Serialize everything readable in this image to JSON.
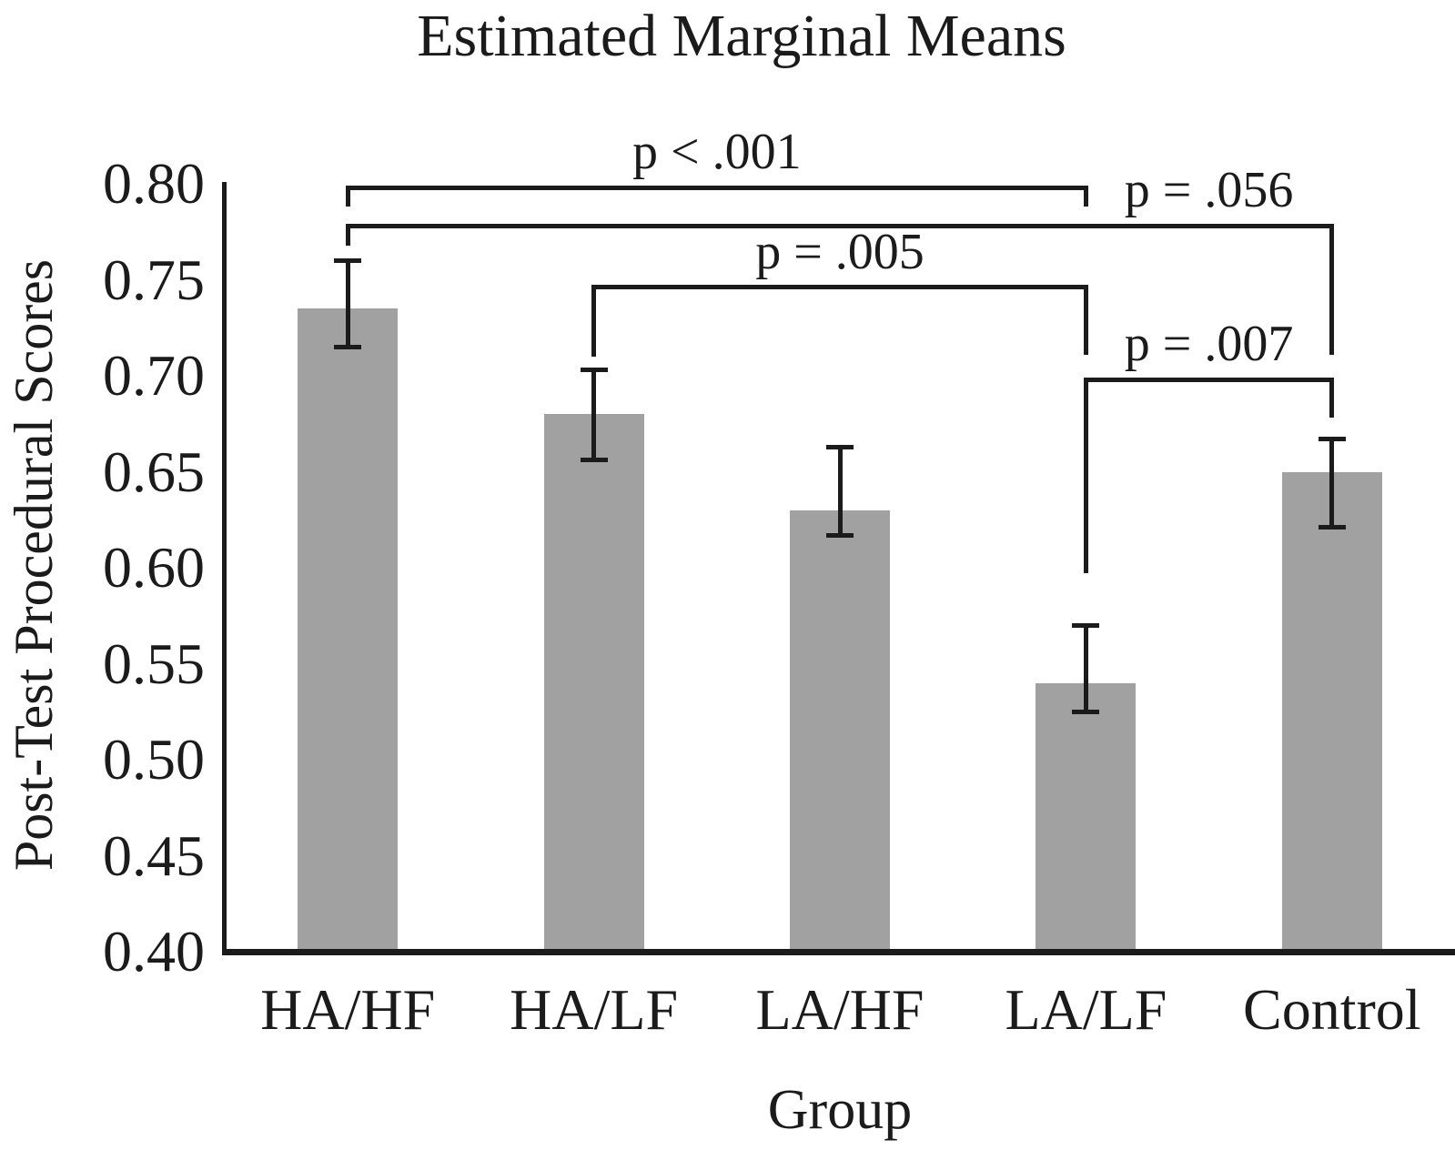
{
  "figure": {
    "background": "#ffffff",
    "text_color": "#1b1b1b"
  },
  "chart_data": {
    "type": "bar",
    "title": "Estimated Marginal Means",
    "xlabel": "Group",
    "ylabel": "Post-Test Procedural Scores",
    "categories": [
      "HA/HF",
      "HA/LF",
      "LA/HF",
      "LA/LF",
      "Control"
    ],
    "values": [
      0.735,
      0.68,
      0.63,
      0.54,
      0.65
    ],
    "error_bars": {
      "low": [
        0.715,
        0.656,
        0.617,
        0.525,
        0.621
      ],
      "high": [
        0.76,
        0.703,
        0.663,
        0.57,
        0.667
      ]
    },
    "ylim": [
      0.4,
      0.8
    ],
    "ytick_step": 0.05,
    "ytick_labels": [
      "0.80",
      "0.75",
      "0.70",
      "0.65",
      "0.60",
      "0.55",
      "0.50",
      "0.45",
      "0.40"
    ],
    "bar_color": "#a1a1a1",
    "axis_color": "#1b1b1b",
    "grid": false,
    "legend": false,
    "significance_brackets": [
      {
        "label": "p < .001",
        "from": "HA/HF",
        "to": "LA/LF",
        "line_value": 0.798,
        "left_drop_to": 0.788,
        "right_drop_to": 0.788
      },
      {
        "label": "p = .056",
        "from": "HA/HF",
        "to": "Control",
        "line_value": 0.778,
        "left_drop_to": 0.768,
        "right_drop_to": 0.711,
        "label_between": [
          "LA/LF",
          "Control"
        ]
      },
      {
        "label": "p = .005",
        "from": "HA/LF",
        "to": "LA/LF",
        "line_value": 0.746,
        "left_drop_to": 0.71,
        "right_drop_to": 0.711
      },
      {
        "label": "p = .007",
        "from": "LA/LF",
        "to": "Control",
        "line_value": 0.698,
        "left_drop_to": 0.597,
        "right_drop_to": 0.678
      }
    ]
  }
}
